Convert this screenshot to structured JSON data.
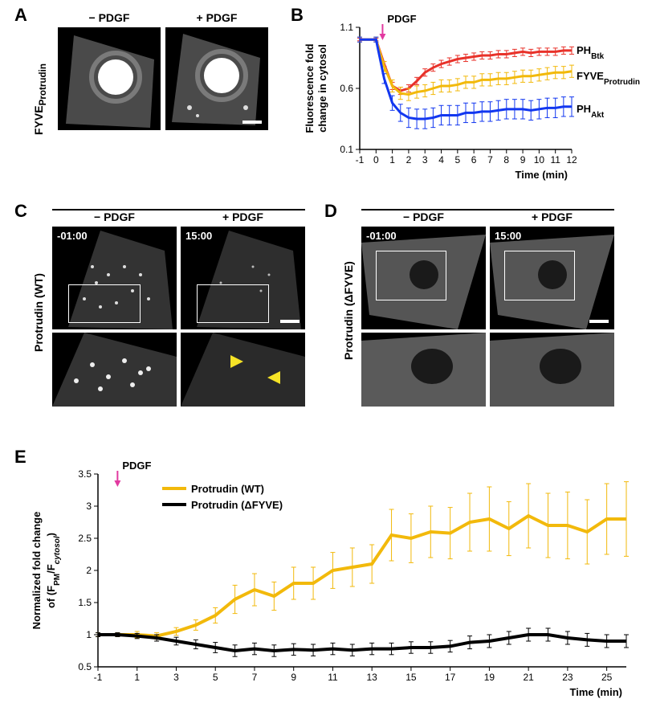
{
  "panelA": {
    "label": "A",
    "sidelabel": "FYVE_Protrudin",
    "columns": [
      "− PDGF",
      "+ PDGF"
    ]
  },
  "panelB": {
    "label": "B",
    "pdgf_label": "PDGF",
    "ylabel": "Fluorescence fold\nchange in cytosol",
    "xlabel": "Time (min)",
    "xticks": [
      -1,
      0,
      1,
      2,
      3,
      4,
      5,
      6,
      7,
      8,
      9,
      10,
      11,
      12
    ],
    "yticks": [
      0.1,
      0.6,
      1.1
    ],
    "xlim": [
      -1,
      12
    ],
    "ylim": [
      0.1,
      1.1
    ],
    "series": [
      {
        "name": "PH_Btk",
        "color": "#e8322a",
        "x": [
          -1,
          0,
          0.5,
          1,
          1.5,
          2,
          2.5,
          3,
          3.5,
          4,
          4.5,
          5,
          5.5,
          6,
          6.5,
          7,
          7.5,
          8,
          8.5,
          9,
          9.5,
          10,
          10.5,
          11,
          11.5,
          12
        ],
        "y": [
          1.0,
          1.0,
          0.8,
          0.62,
          0.58,
          0.6,
          0.66,
          0.73,
          0.77,
          0.8,
          0.82,
          0.84,
          0.85,
          0.86,
          0.87,
          0.87,
          0.88,
          0.88,
          0.89,
          0.9,
          0.89,
          0.9,
          0.9,
          0.9,
          0.91,
          0.91
        ],
        "err": [
          0.01,
          0.01,
          0.02,
          0.03,
          0.03,
          0.03,
          0.03,
          0.03,
          0.03,
          0.03,
          0.03,
          0.03,
          0.03,
          0.03,
          0.03,
          0.03,
          0.03,
          0.03,
          0.03,
          0.03,
          0.03,
          0.03,
          0.03,
          0.03,
          0.03,
          0.03
        ]
      },
      {
        "name": "FYVE_Protrudin",
        "color": "#f2b90b",
        "x": [
          -1,
          0,
          0.5,
          1,
          1.5,
          2,
          2.5,
          3,
          3.5,
          4,
          4.5,
          5,
          5.5,
          6,
          6.5,
          7,
          7.5,
          8,
          8.5,
          9,
          9.5,
          10,
          10.5,
          11,
          11.5,
          12
        ],
        "y": [
          1.0,
          1.0,
          0.78,
          0.62,
          0.56,
          0.55,
          0.57,
          0.58,
          0.6,
          0.62,
          0.62,
          0.63,
          0.65,
          0.65,
          0.67,
          0.67,
          0.68,
          0.68,
          0.69,
          0.7,
          0.7,
          0.71,
          0.72,
          0.73,
          0.73,
          0.74
        ],
        "err": [
          0.02,
          0.02,
          0.04,
          0.05,
          0.05,
          0.05,
          0.05,
          0.05,
          0.05,
          0.05,
          0.05,
          0.05,
          0.05,
          0.05,
          0.05,
          0.05,
          0.05,
          0.05,
          0.05,
          0.05,
          0.05,
          0.05,
          0.05,
          0.05,
          0.05,
          0.05
        ]
      },
      {
        "name": "PH_Akt",
        "color": "#1237f0",
        "x": [
          -1,
          0,
          0.5,
          1,
          1.5,
          2,
          2.5,
          3,
          3.5,
          4,
          4.5,
          5,
          5.5,
          6,
          6.5,
          7,
          7.5,
          8,
          8.5,
          9,
          9.5,
          10,
          10.5,
          11,
          11.5,
          12
        ],
        "y": [
          1.0,
          1.0,
          0.68,
          0.48,
          0.4,
          0.36,
          0.35,
          0.35,
          0.36,
          0.38,
          0.38,
          0.38,
          0.4,
          0.4,
          0.41,
          0.41,
          0.42,
          0.43,
          0.43,
          0.43,
          0.42,
          0.43,
          0.44,
          0.44,
          0.45,
          0.45
        ],
        "err": [
          0.02,
          0.02,
          0.04,
          0.06,
          0.07,
          0.08,
          0.08,
          0.08,
          0.08,
          0.08,
          0.08,
          0.08,
          0.08,
          0.08,
          0.08,
          0.08,
          0.08,
          0.08,
          0.08,
          0.08,
          0.08,
          0.08,
          0.08,
          0.08,
          0.08,
          0.08
        ]
      }
    ]
  },
  "panelC": {
    "label": "C",
    "sidelabel": "Protrudin (WT)",
    "columns": [
      "− PDGF",
      "+ PDGF"
    ],
    "timestamps": [
      "-01:00",
      "15:00"
    ]
  },
  "panelD": {
    "label": "D",
    "sidelabel": "Protrudin (ΔFYVE)",
    "columns": [
      "− PDGF",
      "+ PDGF"
    ],
    "timestamps": [
      "-01:00",
      "15:00"
    ]
  },
  "panelE": {
    "label": "E",
    "pdgf_label": "PDGF",
    "ylabel": "Normalized fold change\nof (F_PM/F_cytosol)",
    "xlabel": "Time (min)",
    "xticks": [
      -1,
      1,
      3,
      5,
      7,
      9,
      11,
      13,
      15,
      17,
      19,
      21,
      23,
      25
    ],
    "yticks": [
      0.5,
      1,
      1.5,
      2,
      2.5,
      3,
      3.5
    ],
    "xlim": [
      -1,
      26
    ],
    "ylim": [
      0.5,
      3.5
    ],
    "series": [
      {
        "name": "Protrudin (WT)",
        "color": "#f2b90b",
        "x": [
          -1,
          0,
          1,
          2,
          3,
          4,
          5,
          6,
          7,
          8,
          9,
          10,
          11,
          12,
          13,
          14,
          15,
          16,
          17,
          18,
          19,
          20,
          21,
          22,
          23,
          24,
          25,
          26
        ],
        "y": [
          1.0,
          1.0,
          1.0,
          0.98,
          1.05,
          1.15,
          1.3,
          1.55,
          1.7,
          1.6,
          1.8,
          1.8,
          2.0,
          2.05,
          2.1,
          2.55,
          2.5,
          2.6,
          2.58,
          2.75,
          2.8,
          2.65,
          2.85,
          2.7,
          2.7,
          2.6,
          2.8,
          2.8
        ],
        "err": [
          0.03,
          0.03,
          0.05,
          0.05,
          0.06,
          0.08,
          0.12,
          0.22,
          0.25,
          0.22,
          0.25,
          0.25,
          0.28,
          0.3,
          0.3,
          0.4,
          0.38,
          0.4,
          0.4,
          0.45,
          0.5,
          0.42,
          0.5,
          0.5,
          0.52,
          0.5,
          0.55,
          0.58
        ]
      },
      {
        "name": "Protrudin (ΔFYVE)",
        "color": "#000000",
        "x": [
          -1,
          0,
          1,
          2,
          3,
          4,
          5,
          6,
          7,
          8,
          9,
          10,
          11,
          12,
          13,
          14,
          15,
          16,
          17,
          18,
          19,
          20,
          21,
          22,
          23,
          24,
          25,
          26
        ],
        "y": [
          1.0,
          1.0,
          0.98,
          0.95,
          0.9,
          0.85,
          0.8,
          0.75,
          0.78,
          0.75,
          0.77,
          0.76,
          0.78,
          0.76,
          0.78,
          0.78,
          0.8,
          0.8,
          0.82,
          0.88,
          0.9,
          0.95,
          1.0,
          1.0,
          0.95,
          0.92,
          0.9,
          0.9
        ],
        "err": [
          0.03,
          0.03,
          0.04,
          0.05,
          0.06,
          0.07,
          0.08,
          0.09,
          0.09,
          0.09,
          0.09,
          0.09,
          0.09,
          0.09,
          0.09,
          0.09,
          0.09,
          0.09,
          0.09,
          0.1,
          0.1,
          0.1,
          0.1,
          0.1,
          0.1,
          0.1,
          0.1,
          0.1
        ]
      }
    ]
  },
  "colors": {
    "arrow_pink": "#e23aa0",
    "arrow_yellow": "#f6e326"
  }
}
